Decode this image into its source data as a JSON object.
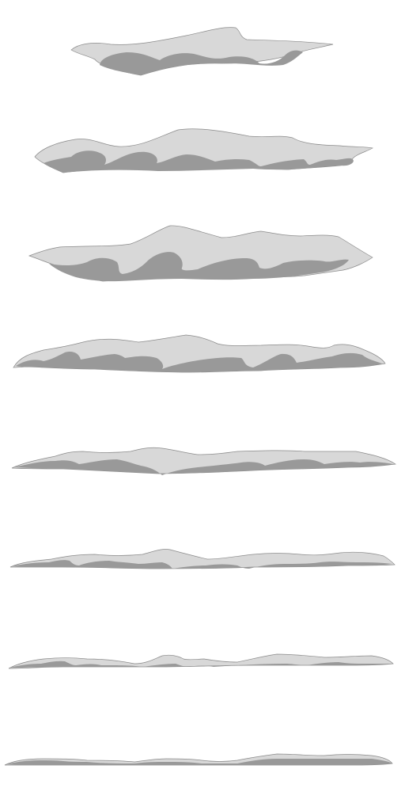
{
  "colors": {
    "background": "#ffffff",
    "highlight": "#d8d8d8",
    "shadow": "#999999",
    "outline": "#8a8a8a"
  },
  "sprite_sheet": {
    "frame_count": 8,
    "layout": "vertical",
    "frames": [
      {
        "id": "frame-1",
        "shape": "flat-cloud-large-band"
      },
      {
        "id": "frame-2",
        "shape": "flat-cloud-wide"
      },
      {
        "id": "frame-3",
        "shape": "flat-cloud-tall-peak"
      },
      {
        "id": "frame-4",
        "shape": "flattening-cloud"
      },
      {
        "id": "frame-5",
        "shape": "thin-cloud"
      },
      {
        "id": "frame-6",
        "shape": "thinner-cloud"
      },
      {
        "id": "frame-7",
        "shape": "fragmented-streak"
      },
      {
        "id": "frame-8",
        "shape": "dissipating-streak"
      }
    ]
  }
}
